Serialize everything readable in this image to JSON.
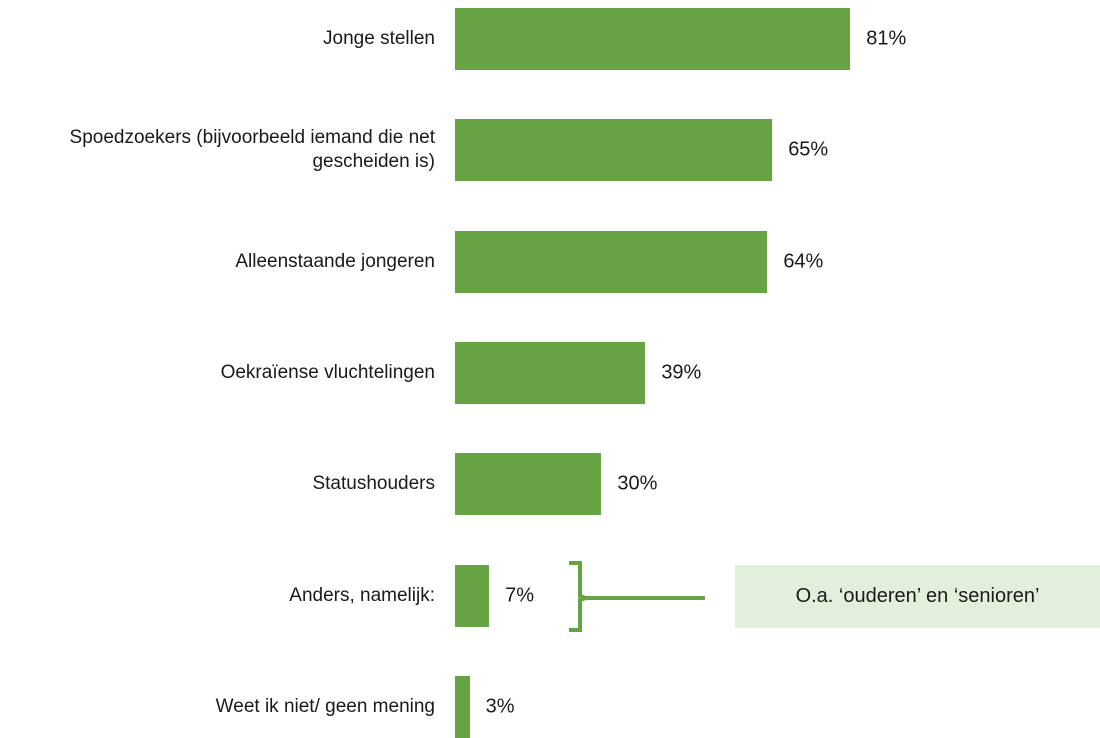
{
  "chart_data": {
    "type": "barh",
    "categories": [
      "Jonge stellen",
      "Spoedzoekers (bijvoorbeeld iemand die net gescheiden is)",
      "Alleenstaande jongeren",
      "Oekraïense vluchtelingen",
      "Statushouders",
      "Anders, namelijk:",
      "Weet ik niet/ geen mening"
    ],
    "values": [
      81,
      65,
      64,
      39,
      30,
      7,
      3
    ],
    "value_labels": [
      "81%",
      "65%",
      "64%",
      "39%",
      "30%",
      "7%",
      "3%"
    ],
    "color": "#66a343",
    "xlim": [
      0,
      100
    ],
    "annotation": "O.a. ‘ouderen’ en ‘senioren’"
  }
}
